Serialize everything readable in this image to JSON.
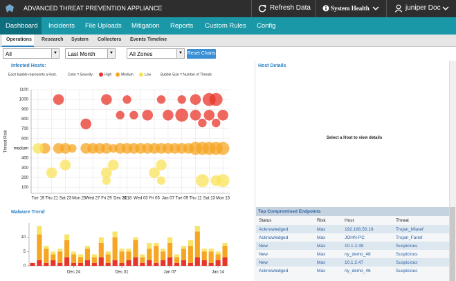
{
  "header": {
    "title": "ADVANCED THREAT PREVENTION APPLIANCE",
    "refresh": "Refresh Data",
    "health": "System Health",
    "user": "juniper Doc"
  },
  "nav": [
    "Dashboard",
    "Incidents",
    "File Uploads",
    "Mitigation",
    "Reports",
    "Custom Rules",
    "Config"
  ],
  "subnav": [
    "Operations",
    "Research",
    "System",
    "Collectors",
    "Events Timeline"
  ],
  "filters": {
    "range": "All",
    "period": "Last Month",
    "zones": "All Zones",
    "reset": "Reset Charts"
  },
  "infected_hosts": {
    "title": "Infected Hosts:",
    "note": "Each bubble represents a Host.",
    "color_note": "Color = Severity:",
    "size_note": "Bubble Size = Number of Threats"
  },
  "host_details": {
    "title": "Host Details",
    "message": "Select a Host to view details"
  },
  "malware_trend": {
    "title": "Malware Trend"
  },
  "endpoints": {
    "title": "Top Compromised Endpoints",
    "columns": [
      "Status",
      "Risk",
      "Host",
      "Threat"
    ],
    "rows": [
      [
        "Acknowledged",
        "Max",
        "192.168.50.18",
        "Trojan_Miuref"
      ],
      [
        "Acknowledged",
        "Max",
        "JOHN-PC",
        "Trojan_Fareit"
      ],
      [
        "New",
        "Max",
        "10.1.2.49",
        "Suspicious"
      ],
      [
        "New",
        "Max",
        "ny_demo_48",
        "Suspicious"
      ],
      [
        "New",
        "Max",
        "10.1.2.47",
        "Suspicious"
      ],
      [
        "Acknowledged",
        "Max",
        "ny_demo_46",
        "Suspicious"
      ]
    ]
  },
  "chart_data": [
    {
      "type": "bubble",
      "y_label": "Threat Risk",
      "grid": true,
      "xlim": [
        -1,
        28
      ],
      "xticks": [
        {
          "value": 0,
          "label": "Tue 19"
        },
        {
          "value": 2,
          "label": "Thu 21"
        },
        {
          "value": 4,
          "label": "Sat 23"
        },
        {
          "value": 6,
          "label": "Mon 25"
        },
        {
          "value": 8,
          "label": "Wed 27"
        },
        {
          "value": 10,
          "label": "Fri 29"
        },
        {
          "value": 12,
          "label": "Dec 31"
        },
        {
          "value": 13,
          "label": "2018"
        },
        {
          "value": 15,
          "label": "Wed 03"
        },
        {
          "value": 17,
          "label": "Fri 05"
        },
        {
          "value": 19,
          "label": "Jan 07"
        },
        {
          "value": 21,
          "label": "Tue 09"
        },
        {
          "value": 23,
          "label": "Thu 11"
        },
        {
          "value": 25,
          "label": "Sat 13"
        },
        {
          "value": 27,
          "label": "Mon 15"
        }
      ],
      "ylim": [
        40,
        1100
      ],
      "yticks": [
        100,
        200,
        300,
        400,
        {
          "value": 500,
          "label": "medium"
        },
        600,
        700,
        800,
        900,
        1000,
        1100
      ],
      "series": [
        {
          "name": "High",
          "color": "#e8352a",
          "x": [
            3,
            10,
            7,
            13,
            12,
            14,
            16,
            19,
            21,
            23,
            23,
            25,
            26,
            27,
            25,
            24,
            26,
            21,
            18
          ],
          "values": [
            1000,
            1000,
            750,
            1000,
            840,
            840,
            840,
            840,
            840,
            840,
            1000,
            1000,
            1000,
            840,
            840,
            760,
            760,
            1000,
            1000
          ],
          "sizes": [
            3,
            3,
            3,
            2,
            2,
            2,
            3,
            3,
            4,
            3,
            3,
            4,
            4,
            3,
            3,
            2,
            2,
            2,
            2
          ]
        },
        {
          "name": "Medium",
          "color": "#f5a623",
          "x": [
            1,
            3,
            4,
            5,
            7,
            8,
            9,
            10,
            11,
            12,
            13,
            14,
            15,
            16,
            17,
            18,
            19,
            20,
            21,
            22,
            23,
            24,
            25,
            26,
            27
          ],
          "values": [
            500,
            500,
            500,
            500,
            500,
            500,
            500,
            500,
            500,
            500,
            500,
            500,
            500,
            500,
            500,
            500,
            500,
            500,
            500,
            500,
            500,
            500,
            500,
            500,
            500
          ],
          "sizes": [
            3,
            3,
            3,
            2,
            3,
            3,
            3,
            3,
            2,
            3,
            3,
            3,
            3,
            3,
            3,
            3,
            3,
            3,
            3,
            3,
            4,
            4,
            4,
            4,
            4
          ]
        },
        {
          "name": "Low",
          "color": "#f9e35b",
          "x": [
            0,
            2,
            4,
            10,
            10,
            11,
            17,
            18,
            18,
            24,
            26,
            27
          ],
          "values": [
            500,
            250,
            330,
            250,
            170,
            330,
            250,
            170,
            330,
            170,
            170,
            170
          ],
          "sizes": [
            3,
            3,
            3,
            3,
            2,
            3,
            3,
            2,
            3,
            4,
            3,
            4
          ]
        }
      ]
    },
    {
      "type": "stacked_bar",
      "categories": [
        null,
        null,
        null,
        null,
        null,
        null,
        "Dec 24",
        null,
        null,
        null,
        null,
        null,
        null,
        "Dec 31",
        null,
        null,
        null,
        null,
        null,
        null,
        "Jan 07",
        null,
        null,
        null,
        null,
        null,
        null,
        "Jan 14",
        null
      ],
      "ylim": [
        0,
        15
      ],
      "yticks": [
        0,
        5,
        10
      ],
      "series": [
        {
          "name": "High",
          "color": "#e8352a",
          "values": [
            1,
            2,
            1,
            2,
            1,
            3,
            1,
            1,
            2,
            1,
            3,
            1,
            2,
            1,
            2,
            3,
            1,
            2,
            1,
            2,
            3,
            1,
            2,
            1,
            3,
            2,
            1,
            2,
            3
          ]
        },
        {
          "name": "Medium",
          "color": "#f5a623",
          "values": [
            0,
            9,
            5,
            2,
            4,
            6,
            3,
            2,
            4,
            2,
            5,
            3,
            8,
            4,
            3,
            6,
            2,
            4,
            6,
            3,
            5,
            2,
            4,
            6,
            9,
            3,
            4,
            2,
            4
          ]
        },
        {
          "name": "Low",
          "color": "#f7e46a",
          "values": [
            0,
            3,
            1,
            1,
            1,
            2,
            1,
            1,
            1,
            1,
            2,
            1,
            2,
            1,
            1,
            1,
            1,
            2,
            1,
            1,
            2,
            1,
            1,
            2,
            2,
            1,
            1,
            1,
            1
          ]
        }
      ]
    }
  ]
}
